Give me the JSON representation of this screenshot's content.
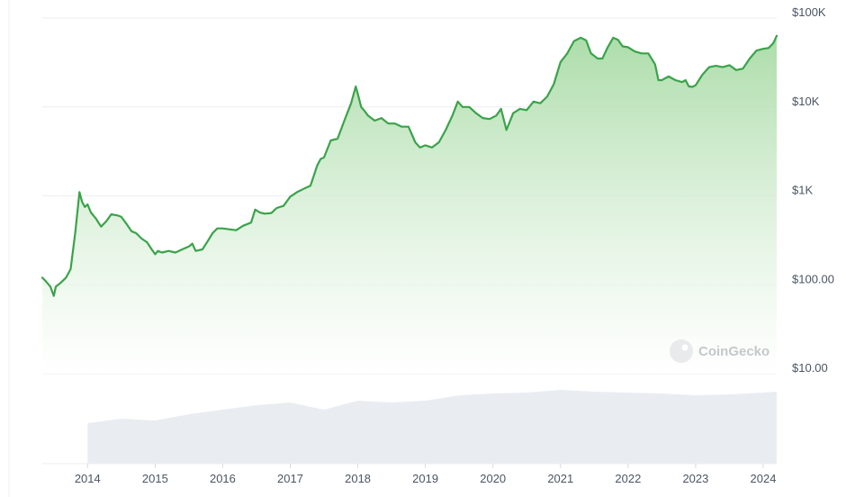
{
  "chart_data": {
    "type": "area",
    "scale": "log",
    "ylim": [
      10,
      100000
    ],
    "xlim": [
      2013.33,
      2024.2
    ],
    "y_ticks": [
      {
        "value": 100000,
        "label": "$100K"
      },
      {
        "value": 10000,
        "label": "$10K"
      },
      {
        "value": 1000,
        "label": "$1K"
      },
      {
        "value": 100,
        "label": "$100.00"
      },
      {
        "value": 10,
        "label": "$10.00"
      }
    ],
    "x_ticks": [
      {
        "value": 2014,
        "label": "2014"
      },
      {
        "value": 2015,
        "label": "2015"
      },
      {
        "value": 2016,
        "label": "2016"
      },
      {
        "value": 2017,
        "label": "2017"
      },
      {
        "value": 2018,
        "label": "2018"
      },
      {
        "value": 2019,
        "label": "2019"
      },
      {
        "value": 2020,
        "label": "2020"
      },
      {
        "value": 2021,
        "label": "2021"
      },
      {
        "value": 2022,
        "label": "2022"
      },
      {
        "value": 2023,
        "label": "2023"
      },
      {
        "value": 2024,
        "label": "2024"
      }
    ],
    "price_series": {
      "x": [
        2013.33,
        2013.38,
        2013.45,
        2013.5,
        2013.53,
        2013.6,
        2013.68,
        2013.75,
        2013.82,
        2013.88,
        2013.92,
        2013.96,
        2014.0,
        2014.05,
        2014.12,
        2014.2,
        2014.28,
        2014.35,
        2014.45,
        2014.5,
        2014.58,
        2014.65,
        2014.72,
        2014.8,
        2014.88,
        2014.95,
        2015.0,
        2015.04,
        2015.1,
        2015.2,
        2015.3,
        2015.4,
        2015.5,
        2015.55,
        2015.6,
        2015.7,
        2015.78,
        2015.85,
        2015.92,
        2016.0,
        2016.1,
        2016.2,
        2016.3,
        2016.42,
        2016.48,
        2016.55,
        2016.62,
        2016.72,
        2016.8,
        2016.9,
        2017.0,
        2017.1,
        2017.2,
        2017.3,
        2017.4,
        2017.45,
        2017.5,
        2017.6,
        2017.7,
        2017.8,
        2017.9,
        2017.97,
        2018.0,
        2018.05,
        2018.1,
        2018.15,
        2018.25,
        2018.35,
        2018.45,
        2018.55,
        2018.65,
        2018.75,
        2018.85,
        2018.92,
        2019.0,
        2019.1,
        2019.2,
        2019.3,
        2019.4,
        2019.48,
        2019.55,
        2019.65,
        2019.75,
        2019.85,
        2019.95,
        2020.05,
        2020.12,
        2020.2,
        2020.3,
        2020.4,
        2020.5,
        2020.6,
        2020.7,
        2020.8,
        2020.9,
        2021.0,
        2021.1,
        2021.2,
        2021.3,
        2021.38,
        2021.45,
        2021.55,
        2021.62,
        2021.7,
        2021.78,
        2021.85,
        2021.92,
        2022.0,
        2022.1,
        2022.2,
        2022.3,
        2022.4,
        2022.45,
        2022.5,
        2022.6,
        2022.7,
        2022.8,
        2022.85,
        2022.9,
        2022.95,
        2023.0,
        2023.1,
        2023.2,
        2023.3,
        2023.4,
        2023.5,
        2023.6,
        2023.7,
        2023.8,
        2023.9,
        2024.0,
        2024.08,
        2024.15,
        2024.2
      ],
      "y": [
        120,
        110,
        95,
        75,
        95,
        105,
        120,
        150,
        400,
        1100,
        850,
        750,
        800,
        650,
        560,
        450,
        520,
        620,
        600,
        580,
        480,
        400,
        380,
        330,
        300,
        250,
        220,
        240,
        230,
        240,
        230,
        250,
        270,
        290,
        240,
        250,
        310,
        380,
        430,
        430,
        420,
        410,
        460,
        500,
        700,
        650,
        630,
        640,
        730,
        770,
        980,
        1100,
        1200,
        1300,
        2200,
        2600,
        2700,
        4200,
        4400,
        7000,
        11000,
        17000,
        14000,
        10000,
        9000,
        8000,
        7000,
        7500,
        6500,
        6500,
        6000,
        6000,
        4000,
        3500,
        3700,
        3500,
        4000,
        5500,
        8000,
        11500,
        10000,
        10000,
        8500,
        7500,
        7300,
        8000,
        9500,
        5500,
        8500,
        9500,
        9200,
        11500,
        11000,
        13000,
        18000,
        32000,
        40000,
        55000,
        60000,
        56000,
        40000,
        35000,
        35000,
        47000,
        60000,
        57000,
        48000,
        47000,
        42000,
        40000,
        40000,
        30000,
        20000,
        20000,
        22000,
        20000,
        19000,
        20000,
        17000,
        16800,
        17500,
        23000,
        28000,
        29000,
        28000,
        29500,
        26000,
        27000,
        35000,
        43000,
        45000,
        46000,
        52000,
        63000
      ],
      "color": "#3aa34a"
    },
    "volume_series": {
      "x": [
        2014.0,
        2014.5,
        2015.0,
        2015.5,
        2016.0,
        2016.5,
        2017.0,
        2017.5,
        2018.0,
        2018.5,
        2019.0,
        2019.5,
        2020.0,
        2020.5,
        2021.0,
        2021.5,
        2022.0,
        2022.5,
        2023.0,
        2023.5,
        2024.0,
        2024.2
      ],
      "y": [
        0.45,
        0.5,
        0.48,
        0.55,
        0.6,
        0.65,
        0.68,
        0.6,
        0.7,
        0.68,
        0.7,
        0.76,
        0.78,
        0.79,
        0.82,
        0.8,
        0.79,
        0.78,
        0.76,
        0.77,
        0.79,
        0.8
      ],
      "color": "#e9edf2"
    },
    "watermark": "CoinGecko",
    "grid": true,
    "legend": false
  }
}
